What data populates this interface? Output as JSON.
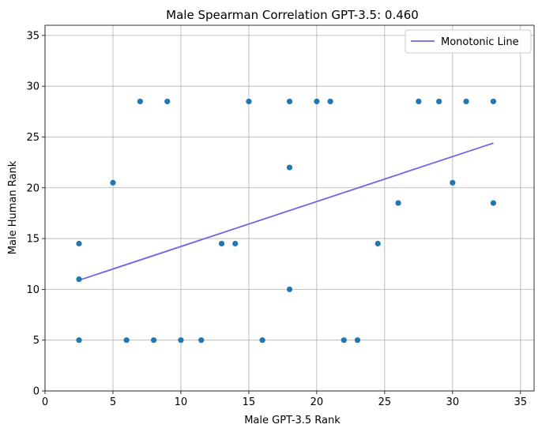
{
  "chart_data": {
    "type": "scatter",
    "title": "Male Spearman Correlation GPT-3.5: 0.460",
    "xlabel": "Male GPT-3.5 Rank",
    "ylabel": "Male Human Rank",
    "xlim": [
      0,
      36
    ],
    "ylim": [
      0,
      36
    ],
    "xticks": [
      "0",
      "5",
      "10",
      "15",
      "20",
      "25",
      "30",
      "35"
    ],
    "yticks": [
      "0",
      "5",
      "10",
      "15",
      "20",
      "25",
      "30",
      "35"
    ],
    "grid": true,
    "legend_position": "top-right",
    "points": [
      {
        "x": 2.5,
        "y": 14.5
      },
      {
        "x": 2.5,
        "y": 11
      },
      {
        "x": 2.5,
        "y": 5
      },
      {
        "x": 5,
        "y": 20.5
      },
      {
        "x": 6,
        "y": 5
      },
      {
        "x": 7,
        "y": 28.5
      },
      {
        "x": 8,
        "y": 5
      },
      {
        "x": 9,
        "y": 28.5
      },
      {
        "x": 10,
        "y": 5
      },
      {
        "x": 11.5,
        "y": 5
      },
      {
        "x": 13,
        "y": 14.5
      },
      {
        "x": 14,
        "y": 14.5
      },
      {
        "x": 15,
        "y": 28.5
      },
      {
        "x": 16,
        "y": 5
      },
      {
        "x": 18,
        "y": 28.5
      },
      {
        "x": 18,
        "y": 22
      },
      {
        "x": 18,
        "y": 10
      },
      {
        "x": 20,
        "y": 28.5
      },
      {
        "x": 21,
        "y": 28.5
      },
      {
        "x": 22,
        "y": 5
      },
      {
        "x": 23,
        "y": 5
      },
      {
        "x": 24.5,
        "y": 14.5
      },
      {
        "x": 26,
        "y": 18.5
      },
      {
        "x": 27.5,
        "y": 28.5
      },
      {
        "x": 29,
        "y": 28.5
      },
      {
        "x": 30,
        "y": 20.5
      },
      {
        "x": 31,
        "y": 28.5
      },
      {
        "x": 33,
        "y": 28.5
      },
      {
        "x": 33,
        "y": 18.5
      }
    ],
    "point_color": "#1f77b4",
    "series": [
      {
        "name": "Monotonic Line",
        "type": "line",
        "color": "#6b66e8",
        "x": [
          2.5,
          33
        ],
        "y": [
          10.9,
          24.4
        ]
      }
    ]
  }
}
